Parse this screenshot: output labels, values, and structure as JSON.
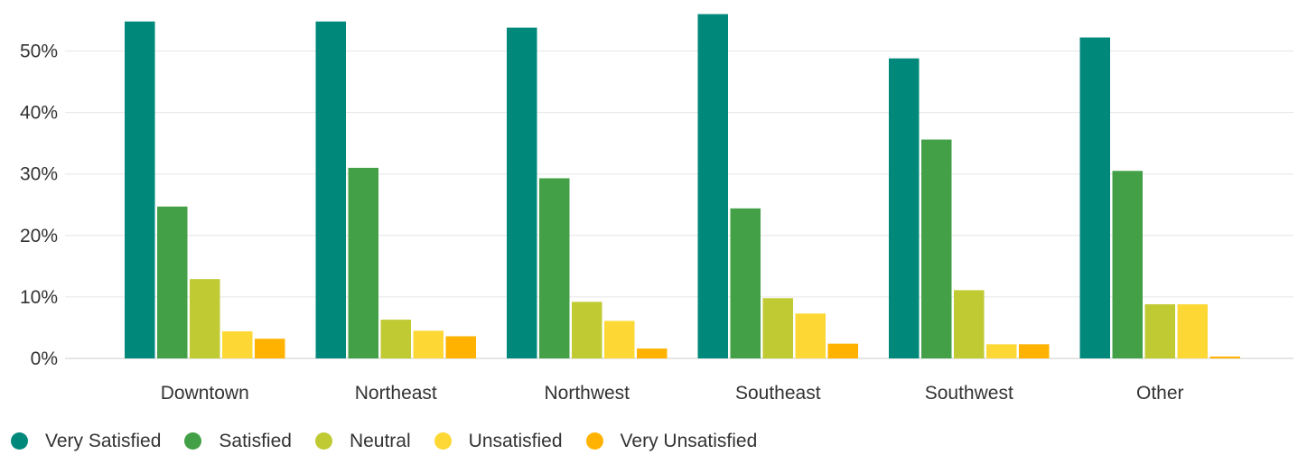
{
  "chart_data": {
    "type": "bar",
    "categories": [
      "Downtown",
      "Northeast",
      "Northwest",
      "Southeast",
      "Southwest",
      "Other"
    ],
    "series": [
      {
        "name": "Very Satisfied",
        "color": "#00897b",
        "values": [
          54.8,
          54.8,
          53.8,
          56.0,
          48.8,
          52.2
        ]
      },
      {
        "name": "Satisfied",
        "color": "#43a047",
        "values": [
          24.7,
          31.0,
          29.3,
          24.4,
          35.6,
          30.5
        ]
      },
      {
        "name": "Neutral",
        "color": "#c0ca33",
        "values": [
          12.9,
          6.3,
          9.2,
          9.8,
          11.1,
          8.8
        ]
      },
      {
        "name": "Unsatisfied",
        "color": "#fdd835",
        "values": [
          4.4,
          4.5,
          6.1,
          7.3,
          2.3,
          8.8
        ]
      },
      {
        "name": "Very Unsatisfied",
        "color": "#ffb300",
        "values": [
          3.2,
          3.6,
          1.6,
          2.4,
          2.3,
          0.3
        ]
      }
    ],
    "y_ticks": [
      "0%",
      "10%",
      "20%",
      "30%",
      "40%",
      "50%"
    ],
    "ylim": [
      0,
      56
    ],
    "grid": true,
    "legend_position": "bottom-left"
  }
}
